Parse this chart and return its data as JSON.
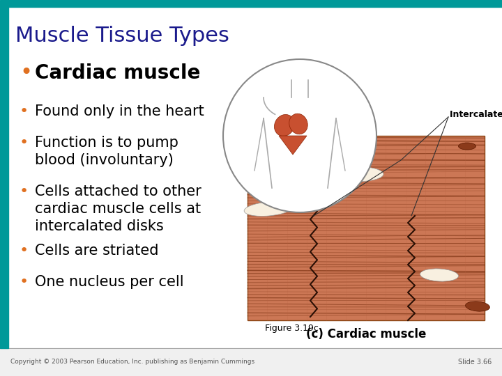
{
  "title": "Muscle Tissue Types",
  "title_color": "#1a1a8c",
  "title_fontsize": 22,
  "background_color": "#ffffff",
  "top_bar_color": "#009999",
  "left_bar_color": "#009999",
  "bullet_color": "#e07020",
  "text_color": "#000000",
  "bullet_main_text": "Cardiac muscle",
  "bullet_main_fontsize": 20,
  "bullet_main_bold": true,
  "bullets_sub": [
    {
      "text": "Found only in the heart",
      "fontsize": 15
    },
    {
      "text": "Function is to pump\nblood (involuntary)",
      "fontsize": 15
    },
    {
      "text": "Cells attached to other\ncardiac muscle cells at\nintercalated disks",
      "fontsize": 15
    },
    {
      "text": "Cells are striated",
      "fontsize": 15
    },
    {
      "text": "One nucleus per cell",
      "fontsize": 15
    }
  ],
  "figure_label": "(c) Cardiac muscle",
  "figure_ref": "Figure 3.19c",
  "copyright": "Copyright © 2003 Pearson Education, Inc. publishing as Benjamin Cummings",
  "slide_number": "Slide 3.66",
  "intercalated_label": "Intercalated disks"
}
